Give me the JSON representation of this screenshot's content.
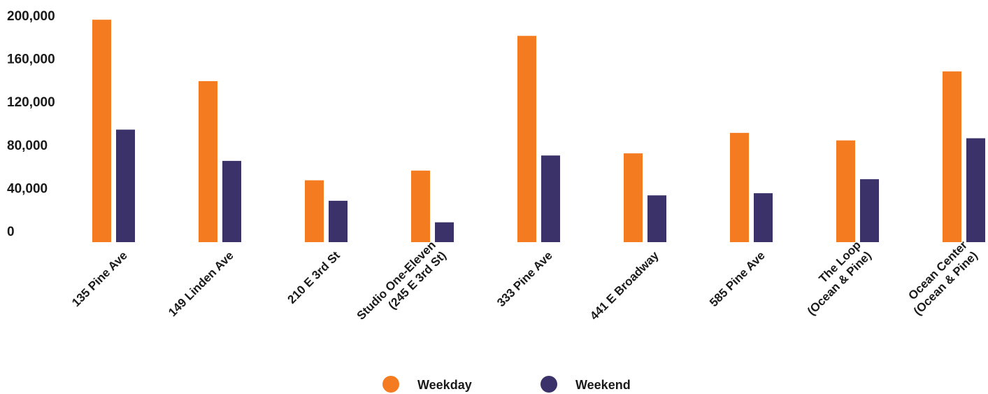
{
  "chart_data": {
    "type": "bar",
    "categories": [
      [
        "135 Pine Ave"
      ],
      [
        "149 Linden Ave"
      ],
      [
        "210 E 3rd St"
      ],
      [
        "Studio One-Eleven",
        "(245 E 3rd St)"
      ],
      [
        "333 Pine Ave"
      ],
      [
        "441 E Broadway"
      ],
      [
        "585 Pine Ave"
      ],
      [
        "The Loop",
        "(Ocean & Pine)"
      ],
      [
        "Ocean Center",
        "(Ocean & Pine)"
      ]
    ],
    "series": [
      {
        "name": "Weekday",
        "color": "#F47B20",
        "values": [
          196000,
          139000,
          47000,
          56000,
          181000,
          72000,
          91000,
          84000,
          148000
        ]
      },
      {
        "name": "Weekend",
        "color": "#3A3268",
        "values": [
          94000,
          65000,
          28000,
          8000,
          70000,
          33000,
          35000,
          48000,
          86000
        ]
      }
    ],
    "yticks": [
      "200,000",
      "160,000",
      "120,000",
      "80,000",
      "40,000",
      "0"
    ],
    "ylim": [
      -10000,
      200000
    ],
    "title": "",
    "xlabel": "",
    "ylabel": "",
    "legend_position": "bottom-center",
    "grid": false
  }
}
